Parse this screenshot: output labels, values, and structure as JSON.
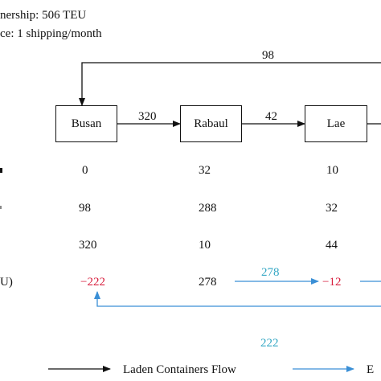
{
  "header": {
    "line1": "nership: 506 TEU",
    "line2": "ce: 1 shipping/month"
  },
  "ports": [
    "Busan",
    "Rabaul",
    "Lae"
  ],
  "flows": {
    "top_loop": "98",
    "busan_rabaul": "320",
    "rabaul_lae": "42",
    "empty_return": "222",
    "empty_rabaul_lae": "278"
  },
  "rows": {
    "row1": {
      "label": "",
      "values": [
        "0",
        "32",
        "10"
      ]
    },
    "row2": {
      "label": "",
      "values": [
        "98",
        "288",
        "32"
      ]
    },
    "row3": {
      "label": "",
      "values": [
        "320",
        "10",
        "44"
      ]
    },
    "row4": {
      "label": "U)",
      "values": [
        "−222",
        "278",
        "−12"
      ]
    }
  },
  "legend": {
    "laden": "Laden Containers Flow",
    "empty": "E"
  },
  "colors": {
    "laden": "#111111",
    "empty": "#3a8fd6",
    "negative": "#d8203f",
    "empty_label": "#33a7c4"
  }
}
